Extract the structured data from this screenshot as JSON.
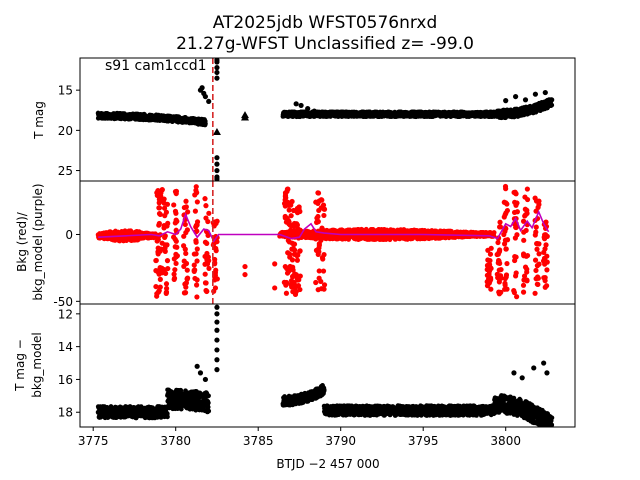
{
  "figure": {
    "title_line1": "AT2025jdb  WFST0576nrxd",
    "title_line2": "21.27g-WFST Unclassified z= -99.0"
  },
  "chart_data": [
    {
      "type": "scatter",
      "panel": "top",
      "ylabel": "T mag",
      "annotation": "s91 cam1ccd1",
      "xlim": [
        3774.2,
        3804.2
      ],
      "ylim": [
        26.3,
        11.0
      ],
      "y_inverted": true,
      "yticks": [
        15,
        20,
        25
      ],
      "vline_x": 3782.25,
      "vline_color": "#d62728",
      "series": [
        {
          "marker": "dot",
          "color": "#000000",
          "segments": [
            {
              "x_start": 3775.3,
              "x_end": 3781.8,
              "y_base": 18.2,
              "y_trend": 0.8,
              "spread": 0.35
            },
            {
              "x_start": 3786.5,
              "x_end": 3799.5,
              "y_base": 18.0,
              "y_trend": 0.0,
              "spread": 0.3
            },
            {
              "x_start": 3799.5,
              "x_end": 3802.8,
              "y_base": 18.0,
              "y_trend": -1.5,
              "spread": 0.5
            }
          ],
          "points": [
            [
              3781.5,
              15.0
            ],
            [
              3781.6,
              14.7
            ],
            [
              3781.7,
              15.4
            ],
            [
              3781.8,
              15.8
            ],
            [
              3782.0,
              16.4
            ],
            [
              3782.5,
              12.2
            ],
            [
              3782.5,
              11.5
            ],
            [
              3782.5,
              12.8
            ],
            [
              3782.5,
              13.5
            ],
            [
              3782.5,
              11.0
            ],
            [
              3782.5,
              23.4
            ],
            [
              3782.5,
              24.2
            ],
            [
              3782.5,
              25.0
            ],
            [
              3782.5,
              25.8
            ],
            [
              3782.5,
              26.2
            ],
            [
              3787.3,
              16.7
            ],
            [
              3787.6,
              16.9
            ],
            [
              3788.0,
              17.3
            ],
            [
              3788.4,
              17.6
            ],
            [
              3788.8,
              17.9
            ],
            [
              3800.0,
              16.3
            ],
            [
              3800.6,
              15.8
            ],
            [
              3801.2,
              16.2
            ],
            [
              3801.8,
              15.5
            ],
            [
              3802.4,
              15.3
            ]
          ]
        },
        {
          "marker": "triangle",
          "color": "#000000",
          "points": [
            [
              3782.5,
              20.2
            ],
            [
              3784.2,
              18.1
            ],
            [
              3784.2,
              18.4
            ]
          ]
        }
      ]
    },
    {
      "type": "scatter",
      "panel": "middle",
      "ylabel_line1": "Bkg (red)/",
      "ylabel_line2": "bkg_model (purple)",
      "xlim": [
        3774.2,
        3804.2
      ],
      "ylim": [
        -52,
        40
      ],
      "yticks": [
        -50,
        0
      ],
      "vline_x": 3782.25,
      "vline_color": "#d62728",
      "series": [
        {
          "name": "Bkg",
          "color": "#ff0000",
          "segments": [
            {
              "x_start": 3775.3,
              "x_end": 3778.8,
              "y_center": -1.0,
              "half_width": 4.0
            },
            {
              "x_start": 3786.3,
              "x_end": 3799.3,
              "y_center": 0.0,
              "half_width": 4.0
            }
          ],
          "columns": [
            {
              "x": 3778.9,
              "y_min": -48,
              "y_max": 34
            },
            {
              "x": 3779.1,
              "y_min": -44,
              "y_max": 36
            },
            {
              "x": 3779.4,
              "y_min": -46,
              "y_max": 28
            },
            {
              "x": 3780.0,
              "y_min": -40,
              "y_max": 35
            },
            {
              "x": 3780.6,
              "y_min": -45,
              "y_max": 30
            },
            {
              "x": 3781.2,
              "y_min": -47,
              "y_max": 36
            },
            {
              "x": 3781.9,
              "y_min": -44,
              "y_max": 32
            },
            {
              "x": 3782.4,
              "y_min": -46,
              "y_max": 10
            },
            {
              "x": 3786.7,
              "y_min": -45,
              "y_max": 34
            },
            {
              "x": 3786.95,
              "y_min": -40,
              "y_max": 30
            },
            {
              "x": 3787.2,
              "y_min": -46,
              "y_max": 18
            },
            {
              "x": 3787.45,
              "y_min": -42,
              "y_max": 22
            },
            {
              "x": 3788.6,
              "y_min": -46,
              "y_max": 36
            },
            {
              "x": 3788.9,
              "y_min": -44,
              "y_max": 28
            },
            {
              "x": 3799.0,
              "y_min": -48,
              "y_max": -10
            },
            {
              "x": 3799.6,
              "y_min": -46,
              "y_max": 10
            },
            {
              "x": 3800.0,
              "y_min": -45,
              "y_max": 36
            },
            {
              "x": 3800.6,
              "y_min": -47,
              "y_max": 32
            },
            {
              "x": 3801.2,
              "y_min": -45,
              "y_max": 34
            },
            {
              "x": 3801.9,
              "y_min": -44,
              "y_max": 30
            },
            {
              "x": 3802.4,
              "y_min": -40,
              "y_max": 10
            }
          ],
          "points": [
            [
              3784.2,
              -24
            ],
            [
              3784.2,
              -30
            ],
            [
              3786.0,
              -22
            ],
            [
              3786.0,
              -40
            ]
          ]
        },
        {
          "name": "bkg_model",
          "color": "#bf00bf",
          "line": [
            [
              3775.3,
              -2
            ],
            [
              3777.0,
              -1
            ],
            [
              3778.5,
              0
            ],
            [
              3779.0,
              -1
            ],
            [
              3779.5,
              2
            ],
            [
              3780.0,
              0
            ],
            [
              3780.3,
              4
            ],
            [
              3780.6,
              15
            ],
            [
              3780.9,
              6
            ],
            [
              3781.3,
              -2
            ],
            [
              3781.7,
              4
            ],
            [
              3782.0,
              3
            ],
            [
              3782.3,
              -5
            ],
            [
              3782.6,
              0
            ],
            [
              3786.3,
              0
            ],
            [
              3787.0,
              -3
            ],
            [
              3787.5,
              -2
            ],
            [
              3787.8,
              4
            ],
            [
              3788.2,
              8
            ],
            [
              3788.5,
              2
            ],
            [
              3789.0,
              1
            ],
            [
              3790.0,
              0
            ],
            [
              3795.0,
              0
            ],
            [
              3799.0,
              -1
            ],
            [
              3799.5,
              -3
            ],
            [
              3800.0,
              8
            ],
            [
              3800.3,
              6
            ],
            [
              3800.6,
              12
            ],
            [
              3800.9,
              3
            ],
            [
              3801.3,
              10
            ],
            [
              3801.6,
              5
            ],
            [
              3802.0,
              17
            ],
            [
              3802.3,
              8
            ],
            [
              3802.6,
              2
            ]
          ]
        }
      ]
    },
    {
      "type": "scatter",
      "panel": "bottom",
      "xlabel": "BTJD −2 457 000",
      "ylabel_line1": "T mag −",
      "ylabel_line2": "bkg_model",
      "xlim": [
        3774.2,
        3804.2
      ],
      "ylim": [
        18.9,
        11.4
      ],
      "y_inverted": true,
      "yticks": [
        12,
        14,
        16,
        18
      ],
      "xticks": [
        3775,
        3780,
        3785,
        3790,
        3795,
        3800
      ],
      "series": [
        {
          "marker": "dot",
          "color": "#000000",
          "segments": [
            {
              "x_start": 3775.3,
              "x_end": 3779.5,
              "y_base": 18.0,
              "y_trend": 0.0,
              "spread": 0.35
            },
            {
              "x_start": 3779.5,
              "x_end": 3782.0,
              "y_base": 17.2,
              "y_trend": 0.2,
              "spread": 0.6
            },
            {
              "x_start": 3786.5,
              "x_end": 3789.0,
              "y_base": 17.3,
              "y_trend": -0.7,
              "spread": 0.3
            },
            {
              "x_start": 3789.0,
              "x_end": 3799.3,
              "y_base": 17.9,
              "y_trend": 0.0,
              "spread": 0.3
            },
            {
              "x_start": 3799.3,
              "x_end": 3802.8,
              "y_base": 17.5,
              "y_trend": 1.3,
              "spread": 0.55
            }
          ],
          "points": [
            [
              3781.3,
              15.2
            ],
            [
              3781.5,
              15.6
            ],
            [
              3781.8,
              16.0
            ],
            [
              3782.5,
              11.6
            ],
            [
              3782.5,
              12.0
            ],
            [
              3782.5,
              12.5
            ],
            [
              3782.5,
              13.0
            ],
            [
              3782.5,
              13.6
            ],
            [
              3782.5,
              14.2
            ],
            [
              3782.5,
              14.8
            ],
            [
              3782.5,
              15.4
            ],
            [
              3800.5,
              15.6
            ],
            [
              3801.0,
              15.9
            ],
            [
              3801.7,
              15.3
            ],
            [
              3802.3,
              15.0
            ],
            [
              3802.5,
              15.6
            ]
          ]
        }
      ]
    }
  ]
}
